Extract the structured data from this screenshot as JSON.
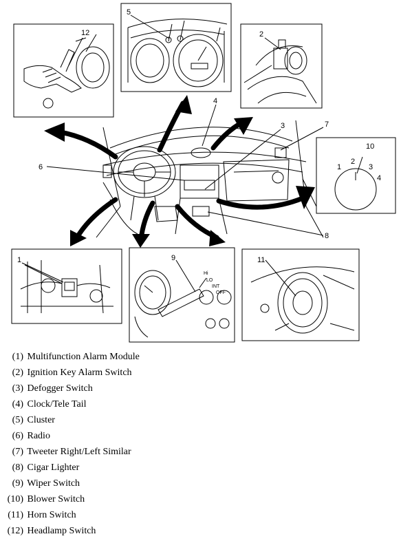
{
  "callouts": {
    "c1": "1",
    "c2": "2",
    "c3": "3",
    "c4": "4",
    "c5": "5",
    "c6": "6",
    "c7": "7",
    "c8": "8",
    "c9": "9",
    "c10": "10",
    "c11": "11",
    "c12": "12"
  },
  "dial": {
    "p1": "1",
    "p2": "2",
    "p3": "3",
    "p4": "4"
  },
  "wiper_positions": {
    "hi": "Hi",
    "lo": "LO",
    "int": "INT",
    "off": "OFF"
  },
  "legend": [
    {
      "num": "(1)",
      "label": "Multifunction Alarm Module"
    },
    {
      "num": "(2)",
      "label": "Ignition Key Alarm Switch"
    },
    {
      "num": "(3)",
      "label": "Defogger Switch"
    },
    {
      "num": "(4)",
      "label": "Clock/Tele Tail"
    },
    {
      "num": "(5)",
      "label": "Cluster"
    },
    {
      "num": "(6)",
      "label": "Radio"
    },
    {
      "num": "(7)",
      "label": "Tweeter Right/Left Similar"
    },
    {
      "num": "(8)",
      "label": "Cigar Lighter"
    },
    {
      "num": "(9)",
      "label": "Wiper Switch"
    },
    {
      "num": "(10)",
      "label": "Blower Switch"
    },
    {
      "num": "(11)",
      "label": "Horn Switch"
    },
    {
      "num": "(12)",
      "label": "Headlamp Switch"
    }
  ]
}
